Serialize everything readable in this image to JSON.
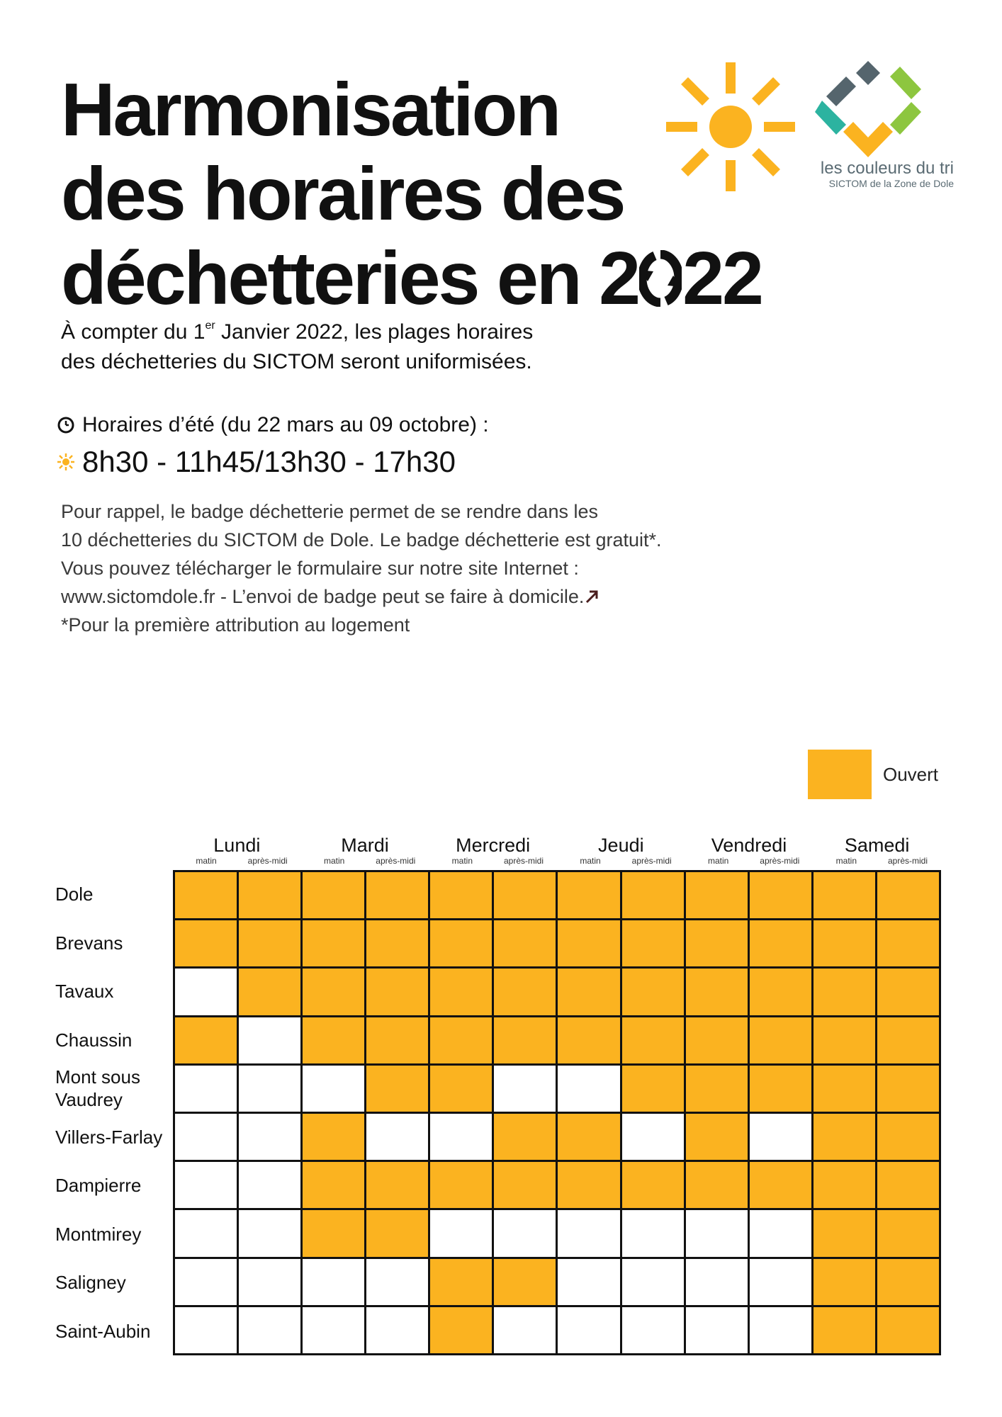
{
  "title": {
    "line1": "Harmonisation",
    "line2": "des horaires des",
    "line3_prefix": "déchetteries en",
    "year_digit_1": "2",
    "year_digit_end": "22"
  },
  "logo": {
    "brand": "les couleurs du tri",
    "subtitle": "SICTOM de la Zone de Dole",
    "sun_color": "#fbb320",
    "colors": [
      "#55656d",
      "#2cb3a0",
      "#8dc63f",
      "#fbb320"
    ]
  },
  "intro": {
    "part1": "À compter du 1",
    "sup": "er",
    "part2": " Janvier 2022, les plages horaires",
    "line2": "des déchetteries du SICTOM seront uniformisées."
  },
  "summer": {
    "label": "Horaires d’été (du 22 mars au 09 octobre) :",
    "hours": "8h30 - 11h45/13h30 - 17h30",
    "clock_icon": "clock-icon",
    "sun_icon": "sun-icon"
  },
  "reminder": {
    "line1": "Pour rappel, le badge déchetterie permet de se rendre dans les",
    "line2": "10 déchetteries du SICTOM de Dole. Le badge déchetterie est gratuit*.",
    "line3": "Vous pouvez télécharger le formulaire sur notre site Internet :",
    "line4": "www.sictomdole.fr - L’envoi de badge peut se faire à domicile.",
    "line5": "*Pour la première attribution au logement"
  },
  "legend": {
    "label": "Ouvert",
    "color": "#fbb320"
  },
  "schedule": {
    "days": [
      "Lundi",
      "Mardi",
      "Mercredi",
      "Jeudi",
      "Vendredi",
      "Samedi"
    ],
    "sub_morning": "matin",
    "sub_afternoon": "après-midi",
    "rows": [
      {
        "name": "Dole",
        "slots": [
          1,
          1,
          1,
          1,
          1,
          1,
          1,
          1,
          1,
          1,
          1,
          1
        ]
      },
      {
        "name": "Brevans",
        "slots": [
          1,
          1,
          1,
          1,
          1,
          1,
          1,
          1,
          1,
          1,
          1,
          1
        ]
      },
      {
        "name": "Tavaux",
        "slots": [
          0,
          1,
          1,
          1,
          1,
          1,
          1,
          1,
          1,
          1,
          1,
          1
        ]
      },
      {
        "name": "Chaussin",
        "slots": [
          1,
          0,
          1,
          1,
          1,
          1,
          1,
          1,
          1,
          1,
          1,
          1
        ]
      },
      {
        "name": "Mont sous Vaudrey",
        "slots": [
          0,
          0,
          0,
          1,
          1,
          0,
          0,
          1,
          1,
          1,
          1,
          1
        ]
      },
      {
        "name": "Villers-Farlay",
        "slots": [
          0,
          0,
          1,
          0,
          0,
          1,
          1,
          0,
          1,
          0,
          1,
          1
        ]
      },
      {
        "name": "Dampierre",
        "slots": [
          0,
          0,
          1,
          1,
          1,
          1,
          1,
          1,
          1,
          1,
          1,
          1
        ]
      },
      {
        "name": "Montmirey",
        "slots": [
          0,
          0,
          1,
          1,
          0,
          0,
          0,
          0,
          0,
          0,
          1,
          1
        ]
      },
      {
        "name": "Saligney",
        "slots": [
          0,
          0,
          0,
          0,
          1,
          1,
          0,
          0,
          0,
          0,
          1,
          1
        ]
      },
      {
        "name": "Saint-Aubin",
        "slots": [
          0,
          0,
          0,
          0,
          1,
          0,
          0,
          0,
          0,
          0,
          1,
          1
        ]
      }
    ]
  }
}
